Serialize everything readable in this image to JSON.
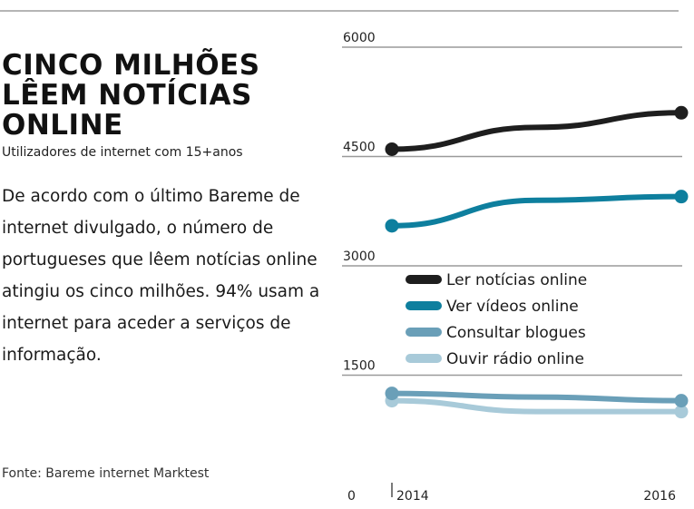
{
  "headline": {
    "title": "CINCO MILHÕES\nLÊEM NOTÍCIAS\nONLINE",
    "subtitle": "Utilizadores de internet com 15+anos"
  },
  "body": "De acordo com o último Bareme de internet divulgado, o número de portugueses que lêem notícias online atingiu os cinco milhões. 94% usam a internet para aceder a serviços de informação.",
  "source": "Fonte: Bareme internet Marktest",
  "chart_data": {
    "type": "line",
    "x": [
      2014,
      2015,
      2016
    ],
    "x_tick_labels": [
      "2014",
      "2016"
    ],
    "ylim": [
      0,
      6000
    ],
    "y_ticks": [
      0,
      1500,
      3000,
      4500,
      6000
    ],
    "grid": "horizontal",
    "legend_position": "center",
    "series": [
      {
        "name": "Ler notícias online",
        "color": "#1e1e1e",
        "values": [
          4600,
          4900,
          5100
        ]
      },
      {
        "name": "Ver vídeos online",
        "color": "#0e7f9e",
        "values": [
          3550,
          3900,
          3950
        ]
      },
      {
        "name": "Consultar blogues",
        "color": "#6a9fb8",
        "values": [
          1250,
          1200,
          1150
        ]
      },
      {
        "name": "Ouvir rádio online",
        "color": "#a8cad9",
        "values": [
          1150,
          1000,
          1000
        ]
      }
    ]
  }
}
